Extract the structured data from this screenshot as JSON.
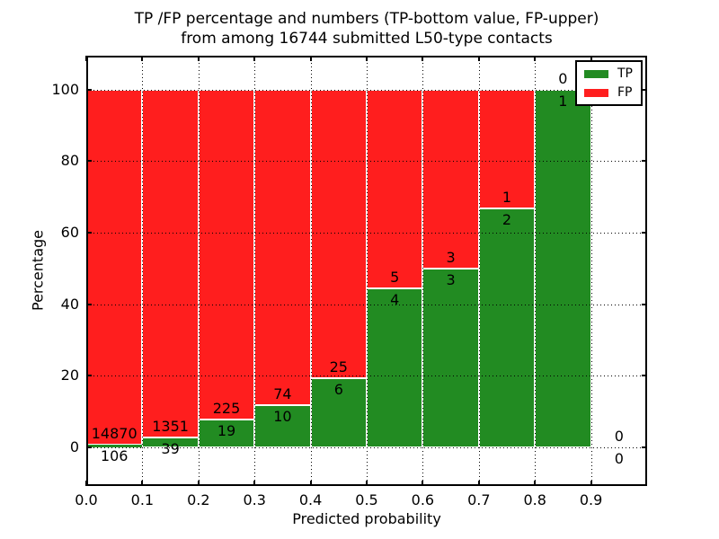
{
  "title": {
    "line1": "TP /FP percentage and numbers (TP-bottom value, FP-upper)",
    "line2": "from among 16744 submitted L50-type contacts"
  },
  "axes": {
    "xlabel": "Predicted probability",
    "ylabel": "Percentage",
    "x_ticks": [
      "0.0",
      "0.1",
      "0.2",
      "0.3",
      "0.4",
      "0.5",
      "0.6",
      "0.7",
      "0.8",
      "0.9"
    ],
    "y_ticks": [
      "0",
      "20",
      "40",
      "60",
      "80",
      "100"
    ]
  },
  "legend": [
    {
      "label": "TP",
      "color": "#228b22"
    },
    {
      "label": "FP",
      "color": "#ff1e1e"
    }
  ],
  "colors": {
    "tp": "#228b22",
    "fp": "#ff1e1e",
    "bar_edge": "#ffffff",
    "grid": "#000000"
  },
  "chart_data": {
    "type": "bar",
    "stacked": true,
    "normalized_to_percent": true,
    "title": "TP /FP percentage and numbers (TP-bottom value, FP-upper) from among 16744 submitted L50-type contacts",
    "total_contacts": 16744,
    "xlabel": "Predicted probability",
    "ylabel": "Percentage",
    "xlim": [
      0,
      1.0
    ],
    "ylim_visible": [
      -11,
      109.5
    ],
    "grid": "dotted",
    "legend_position": "upper right",
    "series": [
      {
        "name": "TP",
        "color": "#228b22",
        "counts": [
          106,
          39,
          19,
          10,
          6,
          4,
          3,
          2,
          1,
          0
        ]
      },
      {
        "name": "FP",
        "color": "#ff1e1e",
        "counts": [
          14870,
          1351,
          225,
          74,
          25,
          5,
          3,
          1,
          0,
          0
        ]
      }
    ],
    "bins": [
      {
        "x_start": 0.0,
        "x_end": 0.1,
        "tp": 106,
        "fp": 14870,
        "tp_pct": 0.71
      },
      {
        "x_start": 0.1,
        "x_end": 0.2,
        "tp": 39,
        "fp": 1351,
        "tp_pct": 2.81
      },
      {
        "x_start": 0.2,
        "x_end": 0.3,
        "tp": 19,
        "fp": 225,
        "tp_pct": 7.79
      },
      {
        "x_start": 0.3,
        "x_end": 0.4,
        "tp": 10,
        "fp": 74,
        "tp_pct": 11.9
      },
      {
        "x_start": 0.4,
        "x_end": 0.5,
        "tp": 6,
        "fp": 25,
        "tp_pct": 19.35
      },
      {
        "x_start": 0.5,
        "x_end": 0.6,
        "tp": 4,
        "fp": 5,
        "tp_pct": 44.44
      },
      {
        "x_start": 0.6,
        "x_end": 0.7,
        "tp": 3,
        "fp": 3,
        "tp_pct": 50.0
      },
      {
        "x_start": 0.7,
        "x_end": 0.8,
        "tp": 2,
        "fp": 1,
        "tp_pct": 66.67
      },
      {
        "x_start": 0.8,
        "x_end": 0.9,
        "tp": 1,
        "fp": 0,
        "tp_pct": 100.0
      },
      {
        "x_start": 0.9,
        "x_end": 1.0,
        "tp": 0,
        "fp": 0,
        "tp_pct": null
      }
    ]
  }
}
